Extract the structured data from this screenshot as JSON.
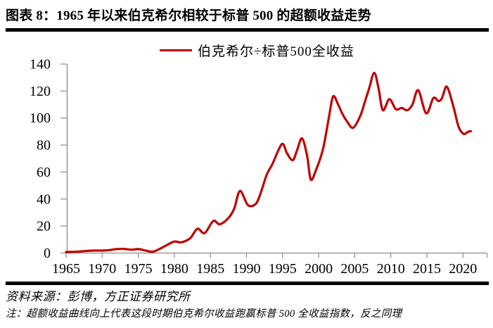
{
  "title": "图表 8：1965 年以来伯克希尔相较于标普 500 的超额收益走势",
  "legend_label": "伯克希尔÷标普500全收益",
  "footer": {
    "source": "资料来源：彭博，方正证券研究所",
    "note": "注：超额收益曲线向上代表这段时期伯克希尔收益跑赢标普 500 全收益指数，反之同理"
  },
  "colors": {
    "line": "#C00000",
    "axis": "#8C8C8C",
    "text": "#000000",
    "rule": "#000000"
  },
  "chart_data": {
    "type": "line",
    "title": "伯克希尔相较于标普500的超额收益走势",
    "xlabel": "",
    "ylabel": "",
    "grid": false,
    "legend_position": "top-center",
    "xlim": [
      1965,
      2023.3
    ],
    "ylim": [
      0,
      140
    ],
    "x_ticks": [
      1965,
      1970,
      1975,
      1980,
      1985,
      1990,
      1995,
      2000,
      2005,
      2010,
      2015,
      2020
    ],
    "y_ticks": [
      0,
      20,
      40,
      60,
      80,
      100,
      120,
      140
    ],
    "series": [
      {
        "name": "伯克希尔÷标普500全收益",
        "x": [
          1965,
          1966,
          1967,
          1968,
          1969,
          1970,
          1971,
          1972,
          1973,
          1974,
          1975,
          1976,
          1977,
          1978,
          1979,
          1980,
          1981,
          1982.2,
          1983.2,
          1984.2,
          1985.4,
          1986.3,
          1987.5,
          1988.3,
          1989.1,
          1990.2,
          1991.3,
          1992,
          1992.8,
          1993.6,
          1994.9,
          1995.6,
          1996.4,
          1997,
          1997.7,
          1998.4,
          1998.9,
          1999.6,
          2000.6,
          2001.4,
          2002,
          2002.7,
          2003.3,
          2004,
          2004.8,
          2005.8,
          2006.4,
          2007,
          2007.7,
          2008.3,
          2008.9,
          2009.8,
          2010.7,
          2011.5,
          2012.3,
          2013,
          2013.8,
          2014.9,
          2015.9,
          2016.6,
          2017.1,
          2017.75,
          2018.6,
          2019.4,
          2020.1,
          2020.7,
          2021.1
        ],
        "values": [
          0.8,
          0.9,
          1.2,
          1.6,
          1.9,
          1.8,
          2.2,
          2.9,
          3.1,
          2.5,
          2.9,
          1.9,
          1.0,
          3.2,
          6.0,
          8.5,
          8.0,
          11,
          18,
          14.8,
          23.8,
          21.3,
          26,
          33,
          46,
          35.5,
          36.5,
          45,
          58,
          66,
          80.7,
          74,
          68.8,
          76,
          85,
          72,
          54.5,
          61,
          77,
          100,
          116,
          110,
          103,
          97,
          92.8,
          102,
          112,
          122,
          133.5,
          122,
          105.8,
          114,
          106.5,
          107.5,
          105.8,
          110,
          120.6,
          103.5,
          114.8,
          112.6,
          114.8,
          123.3,
          110,
          93.5,
          88.3,
          89.8,
          90.3
        ]
      }
    ]
  }
}
